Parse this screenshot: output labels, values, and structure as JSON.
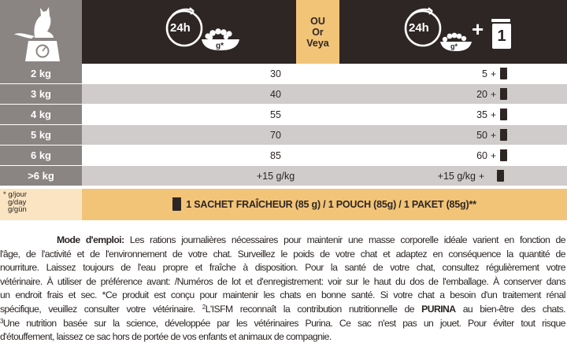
{
  "header": {
    "or_lines": [
      "OU",
      "Or",
      "Veya"
    ],
    "clock_label": "24h",
    "gram_label": "g*",
    "plus_sign": "+",
    "pouch_count": "1",
    "colors": {
      "dark": "#2e2624",
      "grey": "#8a8583",
      "accent": "#f2c478",
      "accent_light": "#fae4c2",
      "row_alt": "#cfcccb"
    }
  },
  "rows": [
    {
      "weight": "2 kg",
      "dry": "30",
      "mixed": "5"
    },
    {
      "weight": "3 kg",
      "dry": "40",
      "mixed": "20"
    },
    {
      "weight": "4 kg",
      "dry": "55",
      "mixed": "35"
    },
    {
      "weight": "5 kg",
      "dry": "70",
      "mixed": "50"
    },
    {
      "weight": "6 kg",
      "dry": "85",
      "mixed": "60"
    },
    {
      "weight": ">6 kg",
      "dry": "+15 g/kg",
      "mixed": "+15 g/kg"
    }
  ],
  "row_plus": "+",
  "legend": {
    "units": [
      "* g/jour",
      "g/day",
      "g/gün"
    ],
    "sachet_text": "1 SACHET FRAÎCHEUR (85 g) / 1 POUCH (85g) / 1 PAKET (85g)**"
  },
  "instructions": {
    "heading": "Mode d'emploi:",
    "l1": "Les rations journalières nécessaires pour maintenir une masse corporelle idéale varient en fonction de",
    "l2": "l'âge, de l'activité et de l'environnement de votre chat. Surveillez le poids de votre chat et adaptez en conséquence la quantité de",
    "l3": "nourriture. Laissez toujours de l'eau propre et fraîche à disposition. Pour la santé de votre chat, consultez régulièrement votre",
    "l4": "vétérinaire. À utiliser de préférence avant: /Numéros de lot et d'enregistrement: voir sur le haut du dos de l'emballage. À conserver dans",
    "l5": "un endroit frais et sec. *Ce produit est conçu pour maintenir les chats en bonne santé. Si votre chat a besoin d'un traitement rénal",
    "l6a": "spécifique, veuillez consulter votre vétérinaire. ",
    "sup2": "2",
    "l6b": "L'ISFM reconnaît la contribution nutritionnelle de ",
    "brand": "PURINA",
    "l6c": " au bien-être des chats.",
    "sup3": "3",
    "l7": "Une nutrition basée sur la science, développée par les vétérinaires Purina. Ce sac n'est pas un jouet. Pour éviter tout risque",
    "l8": "d'étouffement, laissez ce sac hors de portée de vos enfants et animaux de compagnie."
  }
}
